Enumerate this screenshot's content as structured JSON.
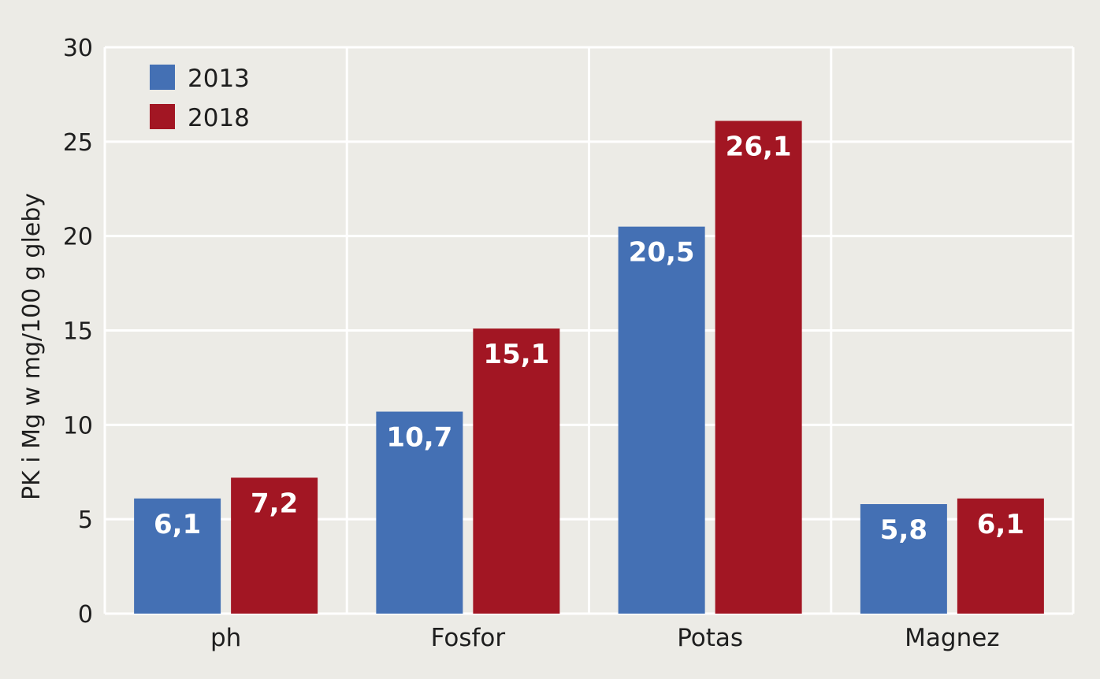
{
  "chart_data": {
    "type": "bar",
    "categories": [
      "ph",
      "Fosfor",
      "Potas",
      "Magnez"
    ],
    "series": [
      {
        "name": "2013",
        "color": "#4470b4",
        "values": [
          6.1,
          10.7,
          20.5,
          5.8
        ],
        "labels": [
          "6,1",
          "10,7",
          "20,5",
          "5,8"
        ]
      },
      {
        "name": "2018",
        "color": "#a21623",
        "values": [
          7.2,
          15.1,
          26.1,
          6.1
        ],
        "labels": [
          "7,2",
          "15,1",
          "26,1",
          "6,1"
        ]
      }
    ],
    "title": "",
    "xlabel": "",
    "ylabel": "PK i Mg w mg/100 g gleby",
    "ylim": [
      0,
      30
    ],
    "yticks": [
      0,
      5,
      10,
      15,
      20,
      25,
      30
    ],
    "grid": true,
    "legend_position": "top-left",
    "background": "#ecebe6",
    "grid_color": "#ffffff"
  }
}
